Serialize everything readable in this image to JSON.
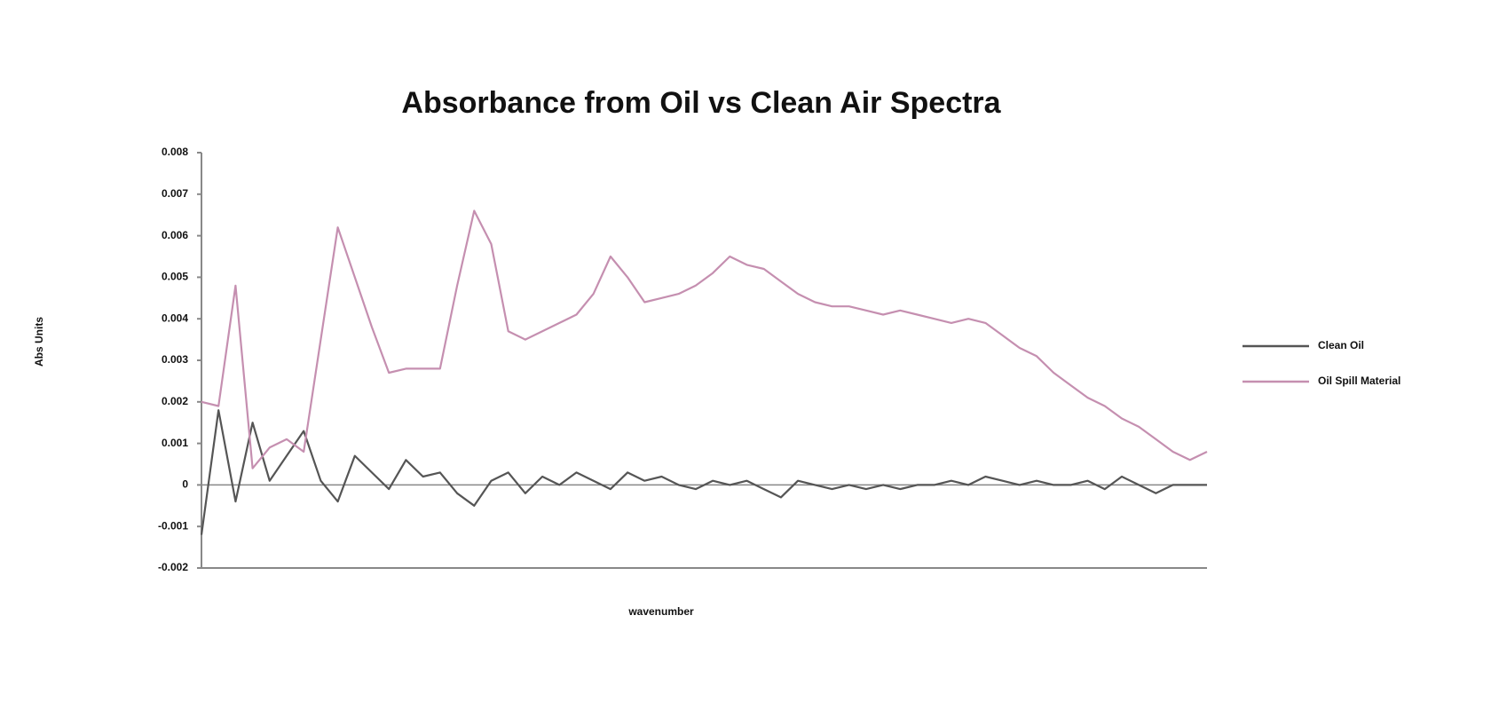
{
  "chart_data": {
    "type": "line",
    "title": "Absorbance from Oil vs Clean Air Spectra",
    "x_label": "wavenumber",
    "y_label": "Abs Units",
    "ylim": [
      -0.002,
      0.008
    ],
    "yticks": [
      0.008,
      0.007,
      0.006,
      0.005,
      0.004,
      0.003,
      0.002,
      0.001,
      0,
      -0.001,
      -0.002
    ],
    "series": [
      {
        "name": "Clean Oil",
        "color": "#555555",
        "values": [
          -0.0012,
          0.0018,
          -0.0004,
          0.0015,
          0.0001,
          0.0007,
          0.0013,
          0.0001,
          -0.0004,
          0.0007,
          0.0003,
          -0.0001,
          0.0006,
          0.0002,
          0.0003,
          -0.0002,
          -0.0005,
          0.0001,
          0.0003,
          -0.0002,
          0.0002,
          0.0,
          0.0003,
          0.0001,
          -0.0001,
          0.0003,
          0.0001,
          0.0002,
          0.0,
          -0.0001,
          0.0001,
          0.0,
          0.0001,
          -0.0001,
          -0.0003,
          0.0001,
          0.0,
          -0.0001,
          0.0,
          -0.0001,
          0.0,
          -0.0001,
          0.0,
          0.0,
          0.0001,
          0.0,
          0.0002,
          0.0001,
          0.0,
          0.0001,
          0.0,
          0.0,
          0.0001,
          -0.0001,
          0.0002,
          0.0,
          -0.0002,
          0.0,
          0.0,
          0.0
        ]
      },
      {
        "name": "Oil Spill Material",
        "color": "#c58fb0",
        "values": [
          0.002,
          0.0019,
          0.0048,
          0.0004,
          0.0009,
          0.0011,
          0.0008,
          0.0035,
          0.0062,
          0.005,
          0.0038,
          0.0027,
          0.0028,
          0.0028,
          0.0028,
          0.0048,
          0.0066,
          0.0058,
          0.0037,
          0.0035,
          0.0037,
          0.0039,
          0.0041,
          0.0046,
          0.0055,
          0.005,
          0.0044,
          0.0045,
          0.0046,
          0.0048,
          0.0051,
          0.0055,
          0.0053,
          0.0052,
          0.0049,
          0.0046,
          0.0044,
          0.0043,
          0.0043,
          0.0042,
          0.0041,
          0.0042,
          0.0041,
          0.004,
          0.0039,
          0.004,
          0.0039,
          0.0036,
          0.0033,
          0.0031,
          0.0027,
          0.0024,
          0.0021,
          0.0019,
          0.0016,
          0.0014,
          0.0011,
          0.0008,
          0.0006,
          0.0008
        ]
      }
    ]
  }
}
